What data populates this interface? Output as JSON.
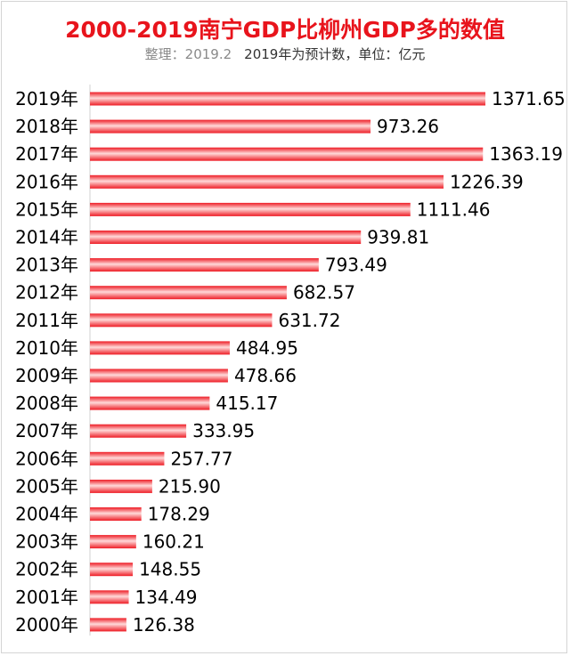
{
  "header": {
    "title": "2000-2019南宁GDP比柳州GDP多的数值",
    "credit": "整理：2019.2",
    "note": "2019年为预计数，单位：亿元"
  },
  "colors": {
    "bar_main": "#ee1c25",
    "bar_highlight": "#ffd9d9",
    "title": "#e8141c"
  },
  "chart_data": {
    "type": "bar",
    "orientation": "horizontal",
    "categories": [
      "2019年",
      "2018年",
      "2017年",
      "2016年",
      "2015年",
      "2014年",
      "2013年",
      "2012年",
      "2011年",
      "2010年",
      "2009年",
      "2008年",
      "2007年",
      "2006年",
      "2005年",
      "2004年",
      "2003年",
      "2002年",
      "2001年",
      "2000年"
    ],
    "values": [
      1371.65,
      973.26,
      1363.19,
      1226.39,
      1111.46,
      939.81,
      793.49,
      682.57,
      631.72,
      484.95,
      478.66,
      415.17,
      333.95,
      257.77,
      215.9,
      178.29,
      160.21,
      148.55,
      134.49,
      126.38
    ],
    "labels": [
      "1371.65",
      "973.26",
      "1363.19",
      "1226.39",
      "1111.46",
      "939.81",
      "793.49",
      "682.57",
      "631.72",
      "484.95",
      "478.66",
      "415.17",
      "333.95",
      "257.77",
      "215.90",
      "178.29",
      "160.21",
      "148.55",
      "134.49",
      "126.38"
    ],
    "xlim": [
      0,
      1400
    ],
    "grid": false,
    "legend": "none"
  }
}
